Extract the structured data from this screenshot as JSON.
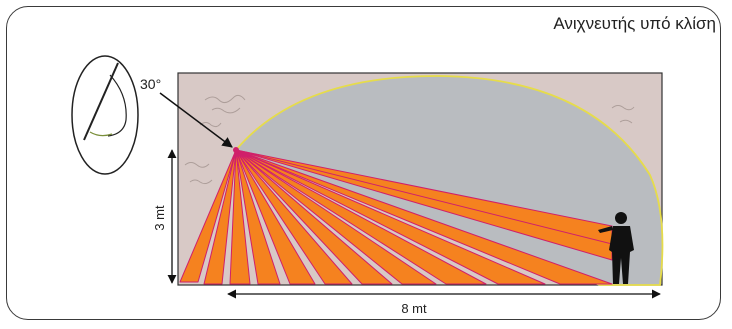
{
  "title": "Ανιχνευτής υπό κλίση",
  "angle_label": "30°",
  "height_label": "3 mt",
  "width_label": "8 mt",
  "colors": {
    "wall": "#d8c9c6",
    "dome": "#b9bcc0",
    "dome_outline": "#e6dc4a",
    "beam_fill": "#f5821f",
    "beam_edge": "#d0206a",
    "text": "#222222"
  },
  "beam_count": 12
}
